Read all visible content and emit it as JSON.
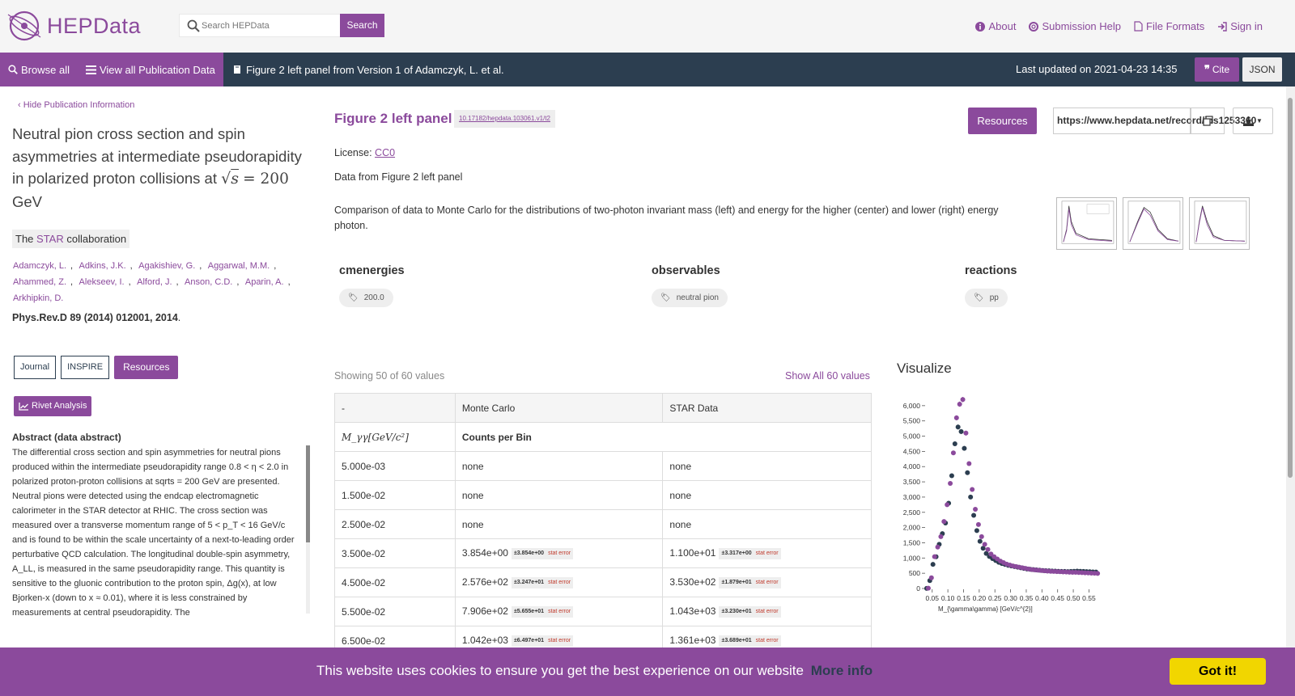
{
  "header": {
    "logo_text": "HEPData",
    "search_placeholder": "Search HEPData",
    "search_button": "Search",
    "nav": [
      {
        "label": "About",
        "icon": "info-icon"
      },
      {
        "label": "Submission Help",
        "icon": "lifebuoy-icon"
      },
      {
        "label": "File Formats",
        "icon": "file-icon"
      },
      {
        "label": "Sign in",
        "icon": "sign-in-icon"
      }
    ]
  },
  "navbar": {
    "browse_all": "Browse all",
    "view_all": "View all Publication Data",
    "breadcrumb": "Figure 2 left panel from Version 1 of Adamczyk, L. et al.",
    "last_updated": "Last updated on 2021-04-23 14:35",
    "cite": "Cite",
    "json": "JSON"
  },
  "publication": {
    "hide_label": "Hide Publication Information",
    "title_prefix": "Neutral pion cross section and spin asymmetries at intermediate pseudorapidity in polarized proton collisions at ",
    "title_math": "= 200",
    "title_suffix": "GeV",
    "collab_prefix": "The",
    "collab_name": "STAR",
    "collab_suffix": "collaboration",
    "authors": [
      "Adamczyk, L.",
      "Adkins, J.K.",
      "Agakishiev, G.",
      "Aggarwal, M.M.",
      "Ahammed, Z.",
      "Alekseev, I.",
      "Alford, J.",
      "Anson, C.D.",
      "Aparin, A.",
      "Arkhipkin, D."
    ],
    "journal": "Phys.Rev.D 89 (2014) 012001, 2014",
    "buttons": {
      "journal": "Journal",
      "inspire": "INSPIRE",
      "resources": "Resources",
      "rivet": "Rivet Analysis"
    },
    "abstract_heading": "Abstract (data abstract)",
    "abstract": "The differential cross section and spin asymmetries for neutral pions produced within the intermediate pseudorapidity range 0.8 < η < 2.0 in polarized proton-proton collisions at sqrts = 200 GeV are presented. Neutral pions were detected using the endcap electromagnetic calorimeter in the STAR detector at RHIC. The cross section was measured over a transverse momentum range of 5 < p_T < 16 GeV/c and is found to be within the scale uncertainty of a next-to-leading order perturbative QCD calculation. The longitudinal double-spin asymmetry, A_LL, is measured in the same pseudorapidity range. This quantity is sensitive to the gluonic contribution to the proton spin, Δg(x), at low Bjorken-x (down to x ≈ 0.01), where it is less constrained by measurements at central pseudorapidity. The"
  },
  "table_info": {
    "title": "Figure 2 left panel",
    "doi": "10.17182/hepdata.103061.v1/t2",
    "resources_button": "Resources",
    "url": "https://www.hepdata.net/record/ins1253360",
    "license_label": "License:",
    "license_link": "CC0",
    "data_from": "Data from Figure 2 left panel",
    "description": "Comparison of data to Monte Carlo for the distributions of two-photon invariant mass (left) and energy for the higher (center) and lower (right) energy photon."
  },
  "keywords": [
    {
      "heading": "cmenergies",
      "tag": "200.0"
    },
    {
      "heading": "observables",
      "tag": "neutral pion"
    },
    {
      "heading": "reactions",
      "tag": "pp"
    }
  ],
  "table": {
    "showing": "Showing 50 of 60 values",
    "show_all": "Show All 60 values",
    "header": [
      "-",
      "Monte Carlo",
      "STAR Data"
    ],
    "subheader_x": "M_γγ[GeV/c²]",
    "subheader_y": "Counts per Bin",
    "stat_label": "stat error",
    "rows": [
      {
        "x": "5.000e-03",
        "mc": "none",
        "mc_err": "",
        "data": "none",
        "data_err": ""
      },
      {
        "x": "1.500e-02",
        "mc": "none",
        "mc_err": "",
        "data": "none",
        "data_err": ""
      },
      {
        "x": "2.500e-02",
        "mc": "none",
        "mc_err": "",
        "data": "none",
        "data_err": ""
      },
      {
        "x": "3.500e-02",
        "mc": "3.854e+00",
        "mc_err": "±3.854e+00",
        "data": "1.100e+01",
        "data_err": "±3.317e+00"
      },
      {
        "x": "4.500e-02",
        "mc": "2.576e+02",
        "mc_err": "±3.247e+01",
        "data": "3.530e+02",
        "data_err": "±1.879e+01"
      },
      {
        "x": "5.500e-02",
        "mc": "7.906e+02",
        "mc_err": "±5.655e+01",
        "data": "1.043e+03",
        "data_err": "±3.230e+01"
      },
      {
        "x": "6.500e-02",
        "mc": "1.042e+03",
        "mc_err": "±6.497e+01",
        "data": "1.361e+03",
        "data_err": "±3.689e+01"
      }
    ]
  },
  "visualize": {
    "title": "Visualize",
    "colors": {
      "mc": "#2c3e50",
      "data": "#8b4a9c"
    }
  },
  "chart_data": {
    "type": "scatter",
    "xlabel": "M_{\\gamma\\gamma} [GeV/c^{2}]",
    "ylabel": "",
    "xlim": [
      0.0,
      0.6
    ],
    "ylim": [
      0,
      6500
    ],
    "x_ticks": [
      "0.05",
      "0.10",
      "0.15",
      "0.20",
      "0.25",
      "0.30",
      "0.35",
      "0.40",
      "0.45",
      "0.50",
      "0.55"
    ],
    "y_ticks": [
      "0",
      "500",
      "1,000",
      "1,500",
      "2,000",
      "2,500",
      "3,000",
      "3,500",
      "4,000",
      "4,500",
      "5,000",
      "5,500",
      "6,000"
    ],
    "series": [
      {
        "color": "#2c3e50",
        "x": [
          0.035,
          0.045,
          0.055,
          0.065,
          0.075,
          0.085,
          0.095,
          0.105,
          0.115,
          0.125,
          0.135,
          0.145,
          0.155,
          0.165,
          0.175,
          0.185,
          0.195,
          0.205,
          0.215,
          0.225,
          0.235,
          0.245,
          0.255,
          0.265,
          0.275,
          0.285,
          0.295,
          0.305,
          0.315,
          0.325,
          0.335,
          0.345,
          0.355,
          0.365,
          0.375,
          0.385,
          0.395,
          0.405,
          0.415,
          0.425,
          0.435,
          0.445,
          0.455,
          0.465,
          0.475,
          0.485,
          0.495,
          0.505,
          0.515,
          0.525,
          0.535,
          0.545,
          0.555,
          0.565,
          0.575
        ],
        "y": [
          4,
          258,
          791,
          1042,
          1450,
          1800,
          2150,
          2800,
          3700,
          4750,
          5300,
          5150,
          4600,
          3800,
          3000,
          2400,
          1900,
          1550,
          1320,
          1150,
          1050,
          980,
          920,
          860,
          820,
          790,
          760,
          740,
          720,
          700,
          680,
          660,
          640,
          630,
          620,
          610,
          600,
          590,
          585,
          580,
          575,
          570,
          565,
          560,
          560,
          555,
          560,
          565,
          570,
          565,
          560,
          555,
          550,
          545,
          540
        ]
      },
      {
        "color": "#8b4a9c",
        "x": [
          0.035,
          0.045,
          0.055,
          0.065,
          0.075,
          0.085,
          0.095,
          0.105,
          0.115,
          0.125,
          0.135,
          0.145,
          0.155,
          0.165,
          0.175,
          0.185,
          0.195,
          0.205,
          0.215,
          0.225,
          0.235,
          0.245,
          0.255,
          0.265,
          0.275,
          0.285,
          0.295,
          0.305,
          0.315,
          0.325,
          0.335,
          0.345,
          0.355,
          0.365,
          0.375,
          0.385,
          0.395,
          0.405,
          0.415,
          0.425,
          0.435,
          0.445,
          0.455,
          0.465,
          0.475,
          0.485,
          0.495,
          0.505,
          0.515,
          0.525,
          0.535,
          0.545,
          0.555,
          0.565,
          0.575
        ],
        "y": [
          11,
          353,
          1043,
          1361,
          1700,
          2200,
          2750,
          3450,
          4450,
          5600,
          6050,
          6200,
          5100,
          4100,
          3250,
          2600,
          2100,
          1700,
          1450,
          1280,
          1130,
          1040,
          970,
          900,
          850,
          800,
          770,
          740,
          720,
          700,
          680,
          660,
          640,
          620,
          610,
          600,
          590,
          580,
          570,
          565,
          560,
          555,
          550,
          545,
          540,
          535,
          530,
          530,
          525,
          520,
          515,
          510,
          505,
          500,
          495
        ]
      }
    ]
  },
  "cookie": {
    "message": "This website uses cookies to ensure you get the best experience on our website",
    "more_info": "More info",
    "got_it": "Got it!"
  }
}
